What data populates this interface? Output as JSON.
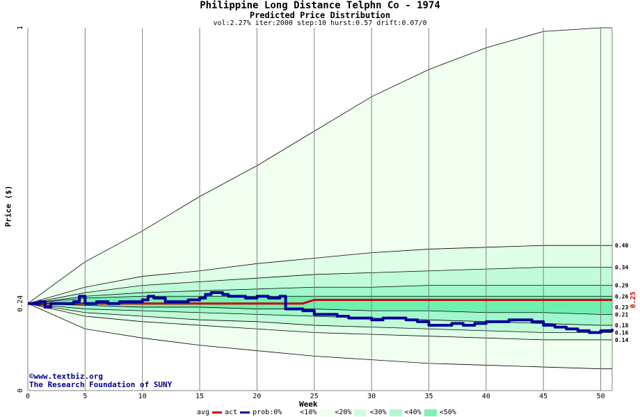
{
  "title": "Philippine Long Distance Telphn Co  - 1974",
  "subtitle": "Predicted Price Distribution",
  "params": "vol:2.27% iter:2000 step:10 hurst:0.57 drift:0.07/0",
  "credit_line1": "©www.textbiz.org",
  "credit_line2": "The Research Foundation of SUNY",
  "legend": {
    "avg": "avg",
    "act": "act",
    "prob": "prob:0%",
    "b10": "<10%",
    "b20": "<20%",
    "b30": "<30%",
    "b40": "<40%",
    "b50": "<50%"
  },
  "colors": {
    "band_outer": "#f0fff0",
    "band_20": "#e0ffe8",
    "band_30": "#c0fcd8",
    "band_40": "#a0f8cc",
    "band_50": "#70f0b0",
    "avg_line": "#cc0000",
    "act_line": "#000099"
  },
  "chart_data": {
    "type": "line",
    "title": "Philippine Long Distance Telphn Co  - 1974",
    "subtitle": "Predicted Price Distribution",
    "xlabel": "Week",
    "ylabel": "Price ($)",
    "xlim": [
      0,
      51
    ],
    "ylim": [
      0,
      1
    ],
    "x_ticks": [
      0,
      5,
      10,
      15,
      20,
      25,
      30,
      35,
      40,
      45,
      50
    ],
    "y_ticks": [
      0,
      0.24,
      1
    ],
    "y_tick_labels": [
      "0",
      "0.24",
      "1"
    ],
    "right_labels": [
      "0.40",
      "0.34",
      "0.29",
      "0.26",
      "0.23",
      "0.21",
      "0.18",
      "0.16",
      "0.14"
    ],
    "right_label_values": [
      0.4,
      0.34,
      0.29,
      0.26,
      0.23,
      0.21,
      0.18,
      0.16,
      0.14
    ],
    "right_red_label": "0.25",
    "right_red_value": 0.25,
    "grid": true,
    "legend_position": "bottom",
    "percentile_bands": {
      "weeks": [
        0,
        5,
        10,
        15,
        20,
        25,
        30,
        35,
        40,
        45,
        50,
        51
      ],
      "upper_outer": [
        0.24,
        0.355,
        0.44,
        0.535,
        0.62,
        0.715,
        0.81,
        0.885,
        0.945,
        0.99,
        1.0,
        1.0
      ],
      "p90": [
        0.24,
        0.285,
        0.315,
        0.33,
        0.35,
        0.365,
        0.38,
        0.39,
        0.395,
        0.4,
        0.4,
        0.4
      ],
      "p80": [
        0.24,
        0.27,
        0.29,
        0.3,
        0.31,
        0.32,
        0.325,
        0.33,
        0.335,
        0.34,
        0.34,
        0.34
      ],
      "p70": [
        0.24,
        0.26,
        0.27,
        0.275,
        0.28,
        0.285,
        0.285,
        0.29,
        0.29,
        0.29,
        0.29,
        0.29
      ],
      "p60": [
        0.24,
        0.255,
        0.26,
        0.26,
        0.26,
        0.26,
        0.26,
        0.26,
        0.26,
        0.26,
        0.26,
        0.26
      ],
      "p40": [
        0.24,
        0.235,
        0.23,
        0.23,
        0.225,
        0.225,
        0.22,
        0.22,
        0.215,
        0.215,
        0.21,
        0.21
      ],
      "p30": [
        0.24,
        0.225,
        0.22,
        0.215,
        0.21,
        0.205,
        0.2,
        0.195,
        0.19,
        0.185,
        0.18,
        0.18
      ],
      "p20": [
        0.24,
        0.215,
        0.205,
        0.195,
        0.19,
        0.18,
        0.175,
        0.17,
        0.165,
        0.16,
        0.16,
        0.16
      ],
      "p10": [
        0.24,
        0.205,
        0.19,
        0.18,
        0.17,
        0.16,
        0.155,
        0.15,
        0.145,
        0.14,
        0.14,
        0.14
      ],
      "lower_outer": [
        0.24,
        0.17,
        0.145,
        0.125,
        0.11,
        0.095,
        0.085,
        0.075,
        0.07,
        0.065,
        0.06,
        0.06
      ]
    },
    "series": [
      {
        "name": "avg",
        "x": [
          0,
          24,
          25,
          51
        ],
        "y": [
          0.24,
          0.24,
          0.25,
          0.25
        ]
      },
      {
        "name": "act",
        "x": [
          0,
          1,
          1.5,
          2,
          3,
          3.5,
          4,
          4.5,
          5,
          5.5,
          6,
          7,
          7.5,
          8,
          9,
          10,
          10.5,
          11,
          12,
          13,
          14,
          15,
          15.5,
          16,
          17,
          17.5,
          18,
          19,
          20,
          21,
          22,
          22.5,
          23,
          24,
          25,
          26,
          27,
          28,
          29,
          30,
          31,
          32,
          33,
          34,
          35,
          36,
          37,
          38,
          39,
          40,
          41,
          42,
          43,
          44,
          45,
          46,
          47,
          48,
          49,
          50,
          51
        ],
        "y": [
          0.24,
          0.245,
          0.23,
          0.24,
          0.24,
          0.24,
          0.245,
          0.26,
          0.24,
          0.24,
          0.245,
          0.24,
          0.24,
          0.245,
          0.245,
          0.25,
          0.26,
          0.255,
          0.245,
          0.245,
          0.25,
          0.255,
          0.265,
          0.27,
          0.265,
          0.26,
          0.26,
          0.255,
          0.26,
          0.255,
          0.26,
          0.225,
          0.225,
          0.22,
          0.21,
          0.21,
          0.205,
          0.2,
          0.2,
          0.195,
          0.2,
          0.2,
          0.195,
          0.19,
          0.18,
          0.18,
          0.185,
          0.18,
          0.185,
          0.19,
          0.19,
          0.195,
          0.195,
          0.19,
          0.18,
          0.175,
          0.17,
          0.165,
          0.16,
          0.165,
          0.17
        ]
      }
    ]
  }
}
